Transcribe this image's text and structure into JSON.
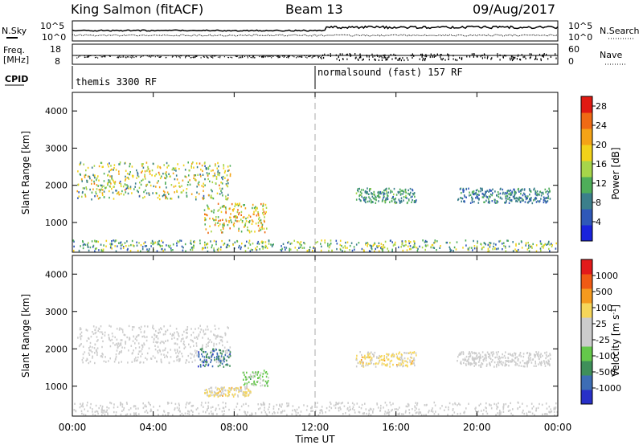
{
  "header": {
    "station": "King Salmon (fitACF)",
    "beam": "Beam 13",
    "date": "09/Aug/2017"
  },
  "ancillary": {
    "nsky_label": "N.Sky",
    "nsearch_label": "N.Search",
    "freq_label_1": "Freq.",
    "freq_label_2": "[MHz]",
    "nave_label": "Nave",
    "cpid_label": "CPID",
    "noise_left_ticks": [
      "10^5",
      "10^0"
    ],
    "noise_right_ticks": [
      "10^5",
      "10^0"
    ],
    "freq_left_ticks": [
      "18",
      "8"
    ],
    "nave_right_ticks": [
      "60",
      "0"
    ],
    "cpid_segments": [
      {
        "label": "themis 3300 RF",
        "start_hour": 0,
        "end_hour": 12
      },
      {
        "label": "normalsound (fast) 157 RF",
        "start_hour": 12,
        "end_hour": 24
      }
    ]
  },
  "colors": {
    "power": [
      "#1a23dc",
      "#2f58b8",
      "#3b7f8b",
      "#4fae5a",
      "#a7d54a",
      "#f2d21a",
      "#f4a316",
      "#ef6a14",
      "#e01a12"
    ],
    "velocity": [
      "#e21a1a",
      "#f05a14",
      "#f59a1e",
      "#f6d65a",
      "#cccccc",
      "#cccccc",
      "#64c84a",
      "#3f8f5a",
      "#3d6db5",
      "#2830c8"
    ]
  },
  "chart_data": [
    {
      "type": "heatmap",
      "panel": "power",
      "title": "",
      "xlabel": "",
      "ylabel": "Slant Range [km]",
      "xlim": [
        0,
        24
      ],
      "ylim": [
        200,
        4500
      ],
      "yticks": [
        "1000",
        "2000",
        "3000",
        "4000"
      ],
      "colorbar": {
        "label": "Power [dB]",
        "range": [
          0,
          30
        ],
        "ticks": [
          "4",
          "8",
          "12",
          "16",
          "20",
          "24",
          "28"
        ]
      },
      "dashed_vline_hour": 12,
      "scatter_regions": [
        {
          "x_range": [
            0.2,
            7.8
          ],
          "y_range": [
            1600,
            2600
          ],
          "value_range": [
            6,
            24
          ]
        },
        {
          "x_range": [
            6.5,
            9.6
          ],
          "y_range": [
            700,
            1500
          ],
          "value_range": [
            10,
            26
          ]
        },
        {
          "x_range": [
            0,
            24
          ],
          "y_range": [
            200,
            500
          ],
          "value_range": [
            4,
            20
          ]
        },
        {
          "x_range": [
            14,
            17
          ],
          "y_range": [
            1500,
            1900
          ],
          "value_range": [
            6,
            14
          ]
        },
        {
          "x_range": [
            19,
            23.6
          ],
          "y_range": [
            1500,
            1900
          ],
          "value_range": [
            4,
            12
          ]
        }
      ]
    },
    {
      "type": "heatmap",
      "panel": "velocity",
      "title": "",
      "xlabel": "Time UT",
      "ylabel": "Slant Range [km]",
      "xlim": [
        0,
        24
      ],
      "ylim": [
        200,
        4500
      ],
      "xticks": [
        "00:00",
        "04:00",
        "08:00",
        "12:00",
        "16:00",
        "20:00",
        "00:00"
      ],
      "yticks": [
        "1000",
        "2000",
        "3000",
        "4000"
      ],
      "colorbar": {
        "label": "Velocity [m s^-1]",
        "range": [
          -1200,
          1200
        ],
        "ticks": [
          "-1000",
          "-500",
          "-100",
          "-25",
          "25",
          "100",
          "500",
          "1000"
        ]
      },
      "dashed_vline_hour": 12,
      "scatter_regions": [
        {
          "x_range": [
            0.2,
            7.8
          ],
          "y_range": [
            1600,
            2600
          ],
          "value_range": [
            -100,
            100
          ]
        },
        {
          "x_range": [
            6.2,
            7.8
          ],
          "y_range": [
            1500,
            2000
          ],
          "value_range": [
            -1000,
            -500
          ]
        },
        {
          "x_range": [
            8.4,
            9.7
          ],
          "y_range": [
            950,
            1400
          ],
          "value_range": [
            -500,
            -100
          ]
        },
        {
          "x_range": [
            6.5,
            8.8
          ],
          "y_range": [
            700,
            950
          ],
          "value_range": [
            25,
            500
          ]
        },
        {
          "x_range": [
            0,
            24
          ],
          "y_range": [
            200,
            550
          ],
          "value_range": [
            -100,
            100
          ]
        },
        {
          "x_range": [
            14,
            17
          ],
          "y_range": [
            1500,
            1900
          ],
          "value_range": [
            25,
            500
          ]
        },
        {
          "x_range": [
            19,
            23.6
          ],
          "y_range": [
            1500,
            1900
          ],
          "value_range": [
            -25,
            25
          ]
        }
      ]
    }
  ]
}
